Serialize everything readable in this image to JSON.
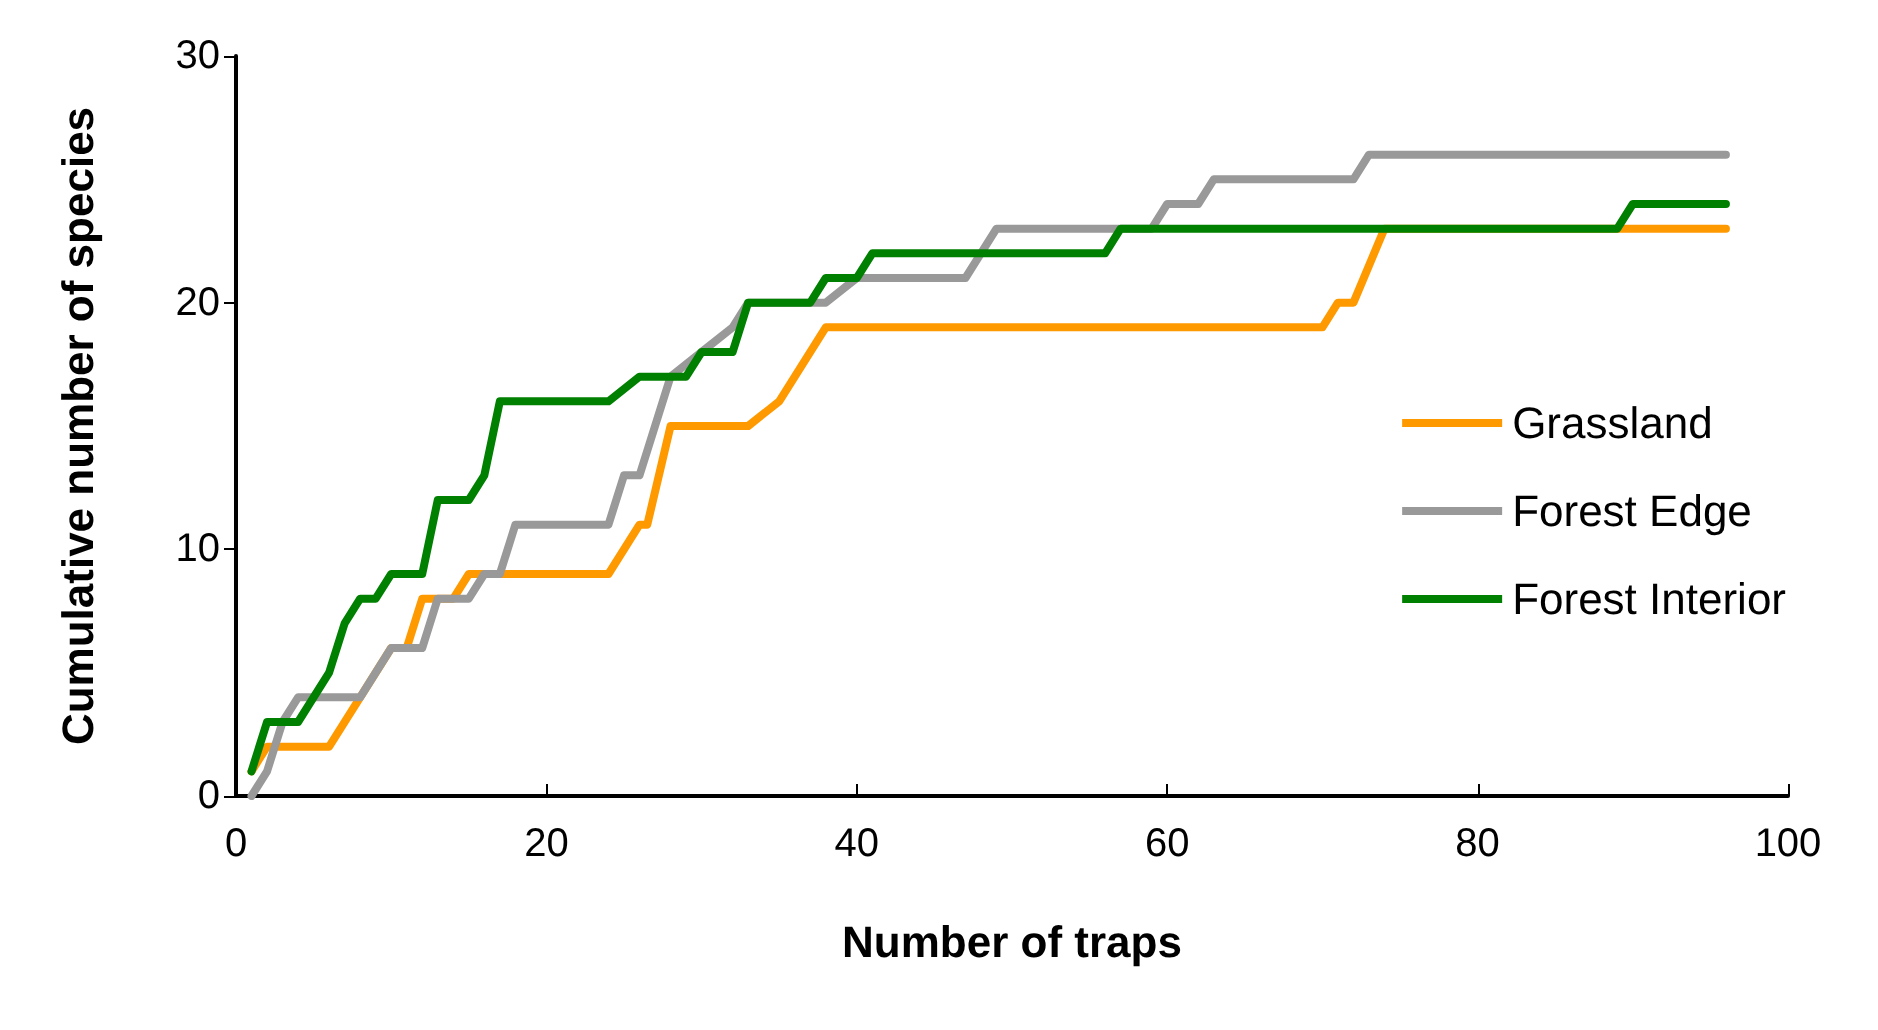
{
  "chart_data": {
    "type": "line",
    "xlabel": "Number of traps",
    "ylabel": "Cumulative number of species",
    "xlim": [
      0,
      100
    ],
    "xticks": [
      0,
      20,
      40,
      60,
      80,
      100
    ],
    "ylim": [
      0,
      30
    ],
    "yticks": [
      0,
      10,
      20,
      30
    ],
    "grid": false,
    "legend": "right",
    "marker": "none",
    "line_style": "solid",
    "series": [
      {
        "name": "Grassland",
        "color": "#ff9900",
        "x": [
          1,
          2,
          6,
          8,
          10,
          11,
          12,
          14,
          15,
          18,
          24,
          26,
          26.5,
          28,
          33,
          35,
          38,
          70,
          71,
          72,
          74,
          96
        ],
        "values": [
          1,
          2,
          2,
          4,
          6,
          6,
          8,
          8,
          9,
          9,
          9,
          11,
          11,
          15,
          15,
          16,
          19,
          19,
          20,
          20,
          23,
          23
        ]
      },
      {
        "name": "Forest Edge",
        "color": "#999999",
        "x": [
          1,
          2,
          3,
          4,
          8,
          10,
          12,
          13,
          15,
          16,
          17,
          18,
          24,
          25,
          26,
          28,
          30,
          32,
          33,
          38,
          40,
          47,
          49,
          59,
          60,
          62,
          63,
          72,
          73,
          96
        ],
        "values": [
          0,
          1,
          3,
          4,
          4,
          6,
          6,
          8,
          8,
          9,
          9,
          11,
          11,
          13,
          13,
          17,
          18,
          19,
          20,
          20,
          21,
          21,
          23,
          23,
          24,
          24,
          25,
          25,
          26,
          26
        ]
      },
      {
        "name": "Forest Interior",
        "color": "#008000",
        "x": [
          1,
          2,
          4,
          6,
          7,
          8,
          9,
          10,
          12,
          13,
          15,
          16,
          17,
          24,
          26,
          29,
          30,
          32,
          33,
          37,
          38,
          40,
          41,
          56,
          57,
          89,
          90,
          96
        ],
        "values": [
          1,
          3,
          3,
          5,
          7,
          8,
          8,
          9,
          9,
          12,
          12,
          13,
          16,
          16,
          17,
          17,
          18,
          18,
          20,
          20,
          21,
          21,
          22,
          22,
          23,
          23,
          24,
          24
        ]
      }
    ]
  }
}
